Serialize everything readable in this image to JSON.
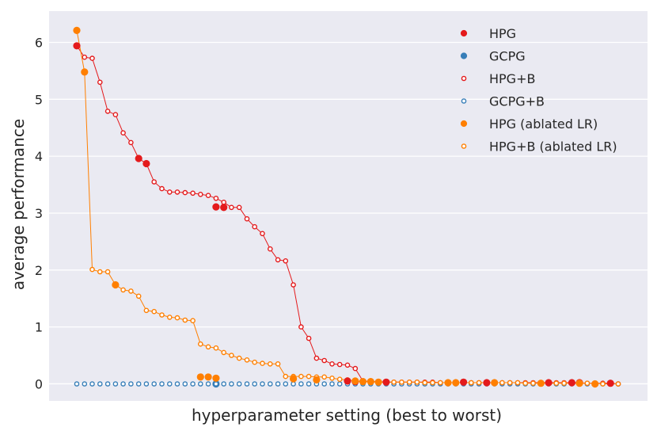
{
  "chart_data": {
    "type": "scatter",
    "title": "",
    "xlabel": "hyperparameter setting (best to worst)",
    "ylabel": "average performance",
    "xlim": [
      0,
      72
    ],
    "ylim": [
      -0.3,
      6.55
    ],
    "yticks": [
      0,
      1,
      2,
      3,
      4,
      5,
      6
    ],
    "grid": true,
    "legend_position": "top-right",
    "background": "#eaeaf2",
    "series": [
      {
        "name": "HPG",
        "color": "#e41a1c",
        "marker": "filled",
        "line": false,
        "x": [
          1,
          9,
          10,
          19,
          20,
          36,
          37,
          41,
          51,
          54,
          62,
          65,
          66,
          70
        ],
        "values": [
          5.94,
          3.96,
          3.87,
          3.11,
          3.1,
          0.05,
          0.04,
          0.03,
          0.03,
          0.02,
          0.02,
          0.02,
          0.02,
          0.01
        ]
      },
      {
        "name": "GCPG",
        "color": "#377eb8",
        "marker": "filled",
        "line": false,
        "x": [
          19
        ],
        "values": [
          0.0
        ]
      },
      {
        "name": "HPG+B",
        "color": "#e41a1c",
        "marker": "hollow",
        "line": true,
        "x": [
          1,
          2,
          3,
          4,
          5,
          6,
          7,
          8,
          9,
          10,
          11,
          12,
          13,
          14,
          15,
          16,
          17,
          18,
          19,
          20,
          21,
          22,
          23,
          24,
          25,
          26,
          27,
          28,
          29,
          30,
          31,
          32,
          33,
          34,
          35,
          36,
          37,
          38,
          39,
          40,
          41,
          42,
          43,
          44,
          45,
          46,
          47,
          48,
          49,
          50,
          51,
          52,
          53,
          54,
          55,
          56,
          57,
          58,
          59,
          60,
          61,
          62,
          63,
          64,
          65,
          66,
          67,
          68,
          69,
          70,
          71
        ],
        "values": [
          5.94,
          5.74,
          5.72,
          5.3,
          4.79,
          4.73,
          4.41,
          4.24,
          3.96,
          3.87,
          3.55,
          3.43,
          3.37,
          3.37,
          3.36,
          3.35,
          3.33,
          3.31,
          3.26,
          3.19,
          3.1,
          3.1,
          2.9,
          2.76,
          2.64,
          2.37,
          2.18,
          2.16,
          1.74,
          1.0,
          0.8,
          0.45,
          0.41,
          0.35,
          0.34,
          0.33,
          0.27,
          0.05,
          0.04,
          0.04,
          0.03,
          0.03,
          0.03,
          0.03,
          0.03,
          0.03,
          0.03,
          0.02,
          0.02,
          0.02,
          0.02,
          0.02,
          0.02,
          0.02,
          0.02,
          0.02,
          0.02,
          0.02,
          0.02,
          0.02,
          0.02,
          0.02,
          0.02,
          0.02,
          0.02,
          0.02,
          0.01,
          0.01,
          0.01,
          0.01,
          0.0
        ]
      },
      {
        "name": "GCPG+B",
        "color": "#377eb8",
        "marker": "hollow",
        "line": false,
        "x": [
          1,
          2,
          3,
          4,
          5,
          6,
          7,
          8,
          9,
          10,
          11,
          12,
          13,
          14,
          15,
          16,
          17,
          18,
          19,
          20,
          21,
          22,
          23,
          24,
          25,
          26,
          27,
          28,
          29,
          30,
          31,
          32,
          33,
          34,
          35,
          36,
          37,
          38,
          39,
          40,
          41,
          42,
          43,
          44,
          45,
          46,
          47,
          48,
          49,
          50,
          51,
          52,
          53,
          54,
          55,
          56,
          57,
          58,
          59,
          60,
          61,
          62,
          63,
          64,
          65,
          66,
          67,
          68,
          69,
          70,
          71
        ],
        "values": [
          0,
          0,
          0,
          0,
          0,
          0,
          0,
          0,
          0,
          0,
          0,
          0,
          0,
          0,
          0,
          0,
          0,
          0,
          0,
          0,
          0,
          0,
          0,
          0,
          0,
          0,
          0,
          0,
          0,
          0,
          0,
          0,
          0,
          0,
          0,
          0,
          0,
          0,
          0,
          0,
          0,
          0,
          0,
          0,
          0,
          0,
          0,
          0,
          0,
          0,
          0,
          0,
          0,
          0,
          0,
          0,
          0,
          0,
          0,
          0,
          0,
          0,
          0,
          0,
          0,
          0,
          0,
          0,
          0,
          0,
          0
        ]
      },
      {
        "name": "HPG (ablated LR)",
        "color": "#ff7f00",
        "marker": "filled",
        "line": false,
        "x": [
          1,
          2,
          6,
          17,
          18,
          19,
          29,
          32,
          37,
          38,
          39,
          40,
          49,
          50,
          55,
          61,
          66,
          68
        ],
        "values": [
          6.21,
          5.48,
          1.74,
          0.12,
          0.12,
          0.1,
          0.09,
          0.07,
          0.05,
          0.04,
          0.04,
          0.03,
          0.02,
          0.02,
          0.02,
          0.01,
          0.01,
          0.0
        ]
      },
      {
        "name": "HPG+B (ablated LR)",
        "color": "#ff7f00",
        "marker": "hollow",
        "line": true,
        "x": [
          1,
          2,
          3,
          4,
          5,
          6,
          7,
          8,
          9,
          10,
          11,
          12,
          13,
          14,
          15,
          16,
          17,
          18,
          19,
          20,
          21,
          22,
          23,
          24,
          25,
          26,
          27,
          28,
          29,
          30,
          31,
          32,
          33,
          34,
          35,
          36,
          37,
          38,
          39,
          40,
          41,
          42,
          43,
          44,
          45,
          46,
          47,
          48,
          49,
          50,
          51,
          52,
          53,
          54,
          55,
          56,
          57,
          58,
          59,
          60,
          61,
          62,
          63,
          64,
          65,
          66,
          67,
          68,
          69,
          70,
          71
        ],
        "values": [
          6.21,
          5.48,
          2.01,
          1.97,
          1.97,
          1.74,
          1.65,
          1.63,
          1.54,
          1.29,
          1.27,
          1.21,
          1.17,
          1.16,
          1.12,
          1.11,
          0.7,
          0.65,
          0.63,
          0.55,
          0.5,
          0.45,
          0.42,
          0.38,
          0.36,
          0.35,
          0.35,
          0.13,
          0.13,
          0.13,
          0.13,
          0.12,
          0.12,
          0.1,
          0.08,
          0.07,
          0.05,
          0.04,
          0.04,
          0.03,
          0.03,
          0.03,
          0.03,
          0.03,
          0.03,
          0.02,
          0.02,
          0.02,
          0.02,
          0.02,
          0.02,
          0.02,
          0.02,
          0.02,
          0.02,
          0.02,
          0.02,
          0.02,
          0.01,
          0.01,
          0.01,
          0.01,
          0.01,
          0.01,
          0.01,
          0.01,
          0.01,
          0.01,
          0.0,
          0.0,
          0.0
        ]
      }
    ]
  }
}
